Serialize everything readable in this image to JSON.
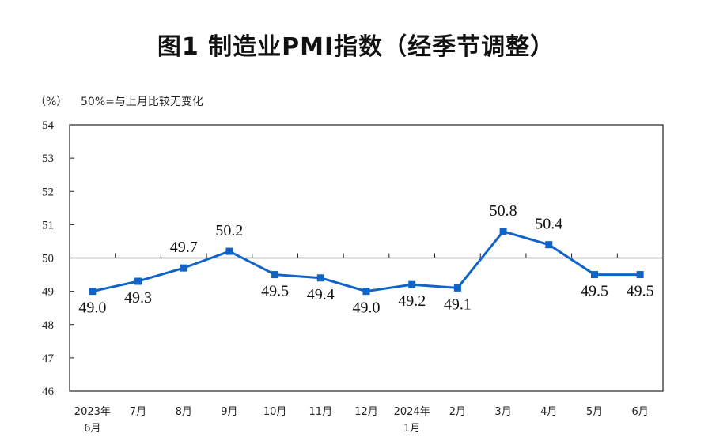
{
  "chart_data": {
    "type": "line",
    "title": "图1  制造业PMI指数（经季节调整）",
    "ylabel": "（%）",
    "annotation": "50%=与上月比较无变化",
    "ylim": [
      46,
      54
    ],
    "yticks": [
      "46",
      "47",
      "48",
      "49",
      "50",
      "51",
      "52",
      "53",
      "54"
    ],
    "reference_line": 50,
    "categories": [
      [
        "2023年",
        "6月"
      ],
      [
        "7月"
      ],
      [
        "8月"
      ],
      [
        "9月"
      ],
      [
        "10月"
      ],
      [
        "11月"
      ],
      [
        "12月"
      ],
      [
        "2024年",
        "1月"
      ],
      [
        "2月"
      ],
      [
        "3月"
      ],
      [
        "4月"
      ],
      [
        "5月"
      ],
      [
        "6月"
      ]
    ],
    "series": [
      {
        "name": "制造业PMI",
        "color": "#1064c8",
        "values": [
          49.0,
          49.3,
          49.7,
          50.2,
          49.5,
          49.4,
          49.0,
          49.2,
          49.1,
          50.8,
          50.4,
          49.5,
          49.5
        ],
        "labels": [
          "49.0",
          "49.3",
          "49.7",
          "50.2",
          "49.5",
          "49.4",
          "49.0",
          "49.2",
          "49.1",
          "50.8",
          "50.4",
          "49.5",
          "49.5"
        ],
        "label_pos": [
          "below",
          "below",
          "above",
          "above",
          "below",
          "below",
          "below",
          "below",
          "below",
          "above",
          "above",
          "below",
          "below"
        ]
      }
    ]
  }
}
